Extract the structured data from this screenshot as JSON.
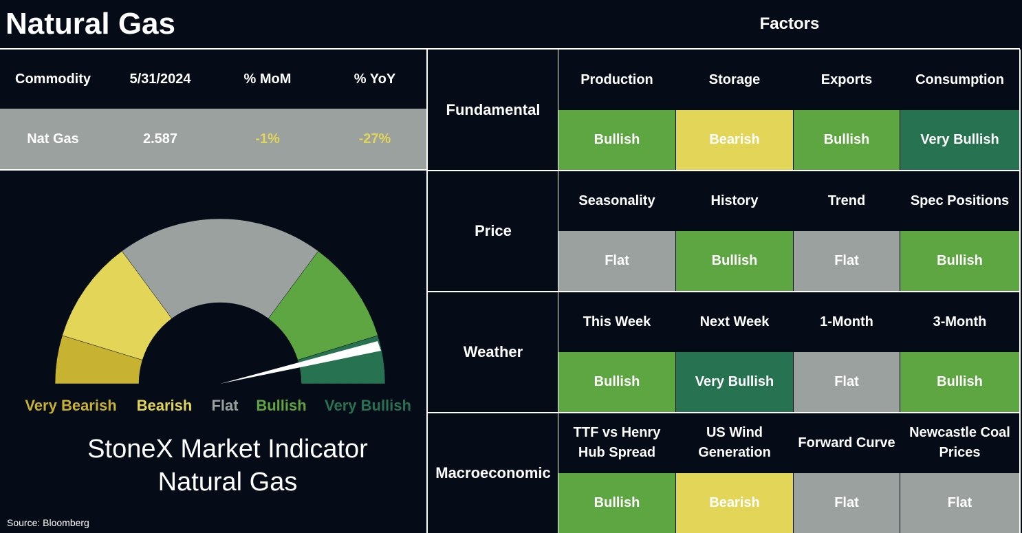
{
  "header": {
    "title": "Natural Gas",
    "factors_title": "Factors"
  },
  "summary": {
    "columns": [
      "Commodity",
      "5/31/2024",
      "% MoM",
      "% YoY"
    ],
    "row": [
      "Nat Gas",
      "2.587",
      "-1%",
      "-27%"
    ]
  },
  "gauge": {
    "segments": [
      {
        "label": "Very Bearish",
        "color": "#c8b232"
      },
      {
        "label": "Bearish",
        "color": "#e2d558"
      },
      {
        "label": "Flat",
        "color": "#9aa19f"
      },
      {
        "label": "Bullish",
        "color": "#5ea642"
      },
      {
        "label": "Very Bullish",
        "color": "#277351"
      }
    ],
    "title": [
      "StoneX Market Indicator",
      "Natural Gas"
    ]
  },
  "source": "Source: Bloomberg",
  "factors": [
    {
      "category": "Fundamental",
      "items": [
        {
          "name": "Production",
          "status": "Bullish"
        },
        {
          "name": "Storage",
          "status": "Bearish"
        },
        {
          "name": "Exports",
          "status": "Bullish"
        },
        {
          "name": "Consumption",
          "status": "Very Bullish"
        }
      ]
    },
    {
      "category": "Price",
      "items": [
        {
          "name": "Seasonality",
          "status": "Flat"
        },
        {
          "name": "History",
          "status": "Bullish"
        },
        {
          "name": "Trend",
          "status": "Flat"
        },
        {
          "name": "Spec Positions",
          "status": "Bullish"
        }
      ]
    },
    {
      "category": "Weather",
      "items": [
        {
          "name": "This Week",
          "status": "Bullish"
        },
        {
          "name": "Next Week",
          "status": "Very Bullish"
        },
        {
          "name": "1-Month",
          "status": "Flat"
        },
        {
          "name": "3-Month",
          "status": "Bullish"
        }
      ]
    },
    {
      "category": "Macroeconomic",
      "items": [
        {
          "name": "TTF vs Henry Hub Spread",
          "status": "Bullish"
        },
        {
          "name": "US Wind Generation",
          "status": "Bearish"
        },
        {
          "name": "Forward Curve",
          "status": "Flat"
        },
        {
          "name": "Newcastle Coal Prices",
          "status": "Flat"
        }
      ]
    }
  ]
}
